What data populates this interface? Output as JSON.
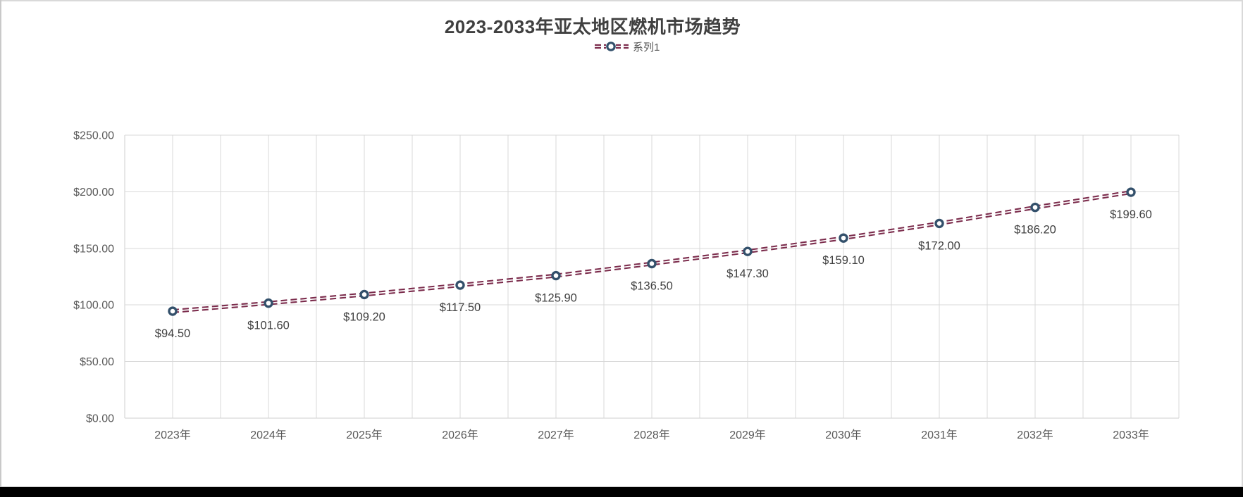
{
  "frame": {
    "background": "#ffffff",
    "bottom_bar_color": "#000000",
    "edge_color": "#d9d9d9"
  },
  "chart_data": {
    "type": "line",
    "title": "2023-2033年亚太地区燃机市场趋势",
    "legend_position": "top",
    "categories": [
      "2023年",
      "2024年",
      "2025年",
      "2026年",
      "2027年",
      "2028年",
      "2029年",
      "2030年",
      "2031年",
      "2032年",
      "2033年"
    ],
    "series": [
      {
        "name": "系列1",
        "values": [
          94.5,
          101.6,
          109.2,
          117.5,
          125.9,
          136.5,
          147.3,
          159.1,
          172.0,
          186.2,
          199.6
        ],
        "data_labels": [
          "$94.50",
          "$101.60",
          "$109.20",
          "$117.50",
          "$125.90",
          "$136.50",
          "$147.30",
          "$159.10",
          "$172.00",
          "$186.20",
          "$199.60"
        ]
      }
    ],
    "xlabel": "",
    "ylabel": "",
    "ylim": [
      0,
      250
    ],
    "y_tick_step": 50,
    "y_ticks": [
      "$0.00",
      "$50.00",
      "$100.00",
      "$150.00",
      "$200.00",
      "$250.00"
    ],
    "grid": {
      "horizontal": true,
      "vertical": true,
      "vertical_divisions_per_category": 2
    },
    "line_style": "double-dashed",
    "marker_style": "open-circle",
    "colors": {
      "line": "#7c2d4d",
      "marker_stroke": "#33506b",
      "marker_fill": "#ffffff",
      "grid": "#d9d9d9",
      "axis": "#cfcfcf",
      "title": "#404040",
      "tick_label": "#595959",
      "data_label": "#404040"
    }
  }
}
